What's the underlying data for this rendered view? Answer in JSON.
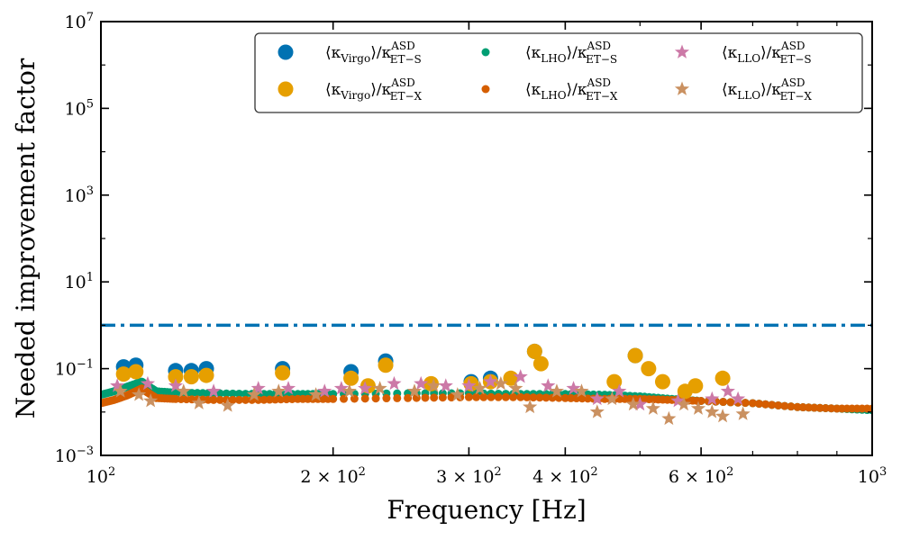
{
  "chart_data": {
    "type": "scatter",
    "title": "",
    "xlabel": "Frequency [Hz]",
    "ylabel": "Needed improvement factor",
    "xscale": "log",
    "yscale": "log",
    "xlim": [
      100,
      1000
    ],
    "ylim": [
      0.001,
      10000000
    ],
    "x_ticks": [
      {
        "value": 100,
        "label": "10",
        "sup": "2"
      },
      {
        "value": 200,
        "label": "2 × 10",
        "sup": "2"
      },
      {
        "value": 300,
        "label": "3 × 10",
        "sup": "2"
      },
      {
        "value": 400,
        "label": "4 × 10",
        "sup": "2"
      },
      {
        "value": 600,
        "label": "6 × 10",
        "sup": "2"
      },
      {
        "value": 1000,
        "label": "10",
        "sup": "3"
      }
    ],
    "y_ticks": [
      {
        "value": 0.001,
        "label": "10",
        "sup": "−3"
      },
      {
        "value": 0.1,
        "label": "10",
        "sup": "−1"
      },
      {
        "value": 10,
        "label": "10",
        "sup": "1"
      },
      {
        "value": 1000,
        "label": "10",
        "sup": "3"
      },
      {
        "value": 100000,
        "label": "10",
        "sup": "5"
      },
      {
        "value": 10000000,
        "label": "10",
        "sup": "7"
      }
    ],
    "reference_line": {
      "y": 1,
      "color": "#0072b2",
      "style": "dash-dot"
    },
    "legend_position": "top-right",
    "series": [
      {
        "name": "⟨κVirgo⟩/κASD ET−S",
        "kappa": "Virgo",
        "det": "ET−S",
        "color": "#0072b2",
        "marker": "circle-large",
        "points": [
          [
            107,
            0.11
          ],
          [
            111,
            0.12
          ],
          [
            125,
            0.09
          ],
          [
            131,
            0.09
          ],
          [
            137,
            0.1
          ],
          [
            172,
            0.1
          ],
          [
            211,
            0.085
          ],
          [
            234,
            0.15
          ],
          [
            302,
            0.05
          ],
          [
            320,
            0.06
          ],
          [
            365,
            0.25
          ],
          [
            493,
            0.2
          ]
        ]
      },
      {
        "name": "⟨κVirgo⟩/κASD ET−X",
        "kappa": "Virgo",
        "det": "ET−X",
        "color": "#e69f00",
        "marker": "circle-large",
        "points": [
          [
            107,
            0.075
          ],
          [
            111,
            0.085
          ],
          [
            125,
            0.065
          ],
          [
            131,
            0.065
          ],
          [
            137,
            0.07
          ],
          [
            172,
            0.08
          ],
          [
            211,
            0.06
          ],
          [
            222,
            0.04
          ],
          [
            234,
            0.12
          ],
          [
            268,
            0.045
          ],
          [
            302,
            0.045
          ],
          [
            320,
            0.05
          ],
          [
            340,
            0.06
          ],
          [
            365,
            0.25
          ],
          [
            372,
            0.13
          ],
          [
            463,
            0.05
          ],
          [
            493,
            0.2
          ],
          [
            513,
            0.1
          ],
          [
            535,
            0.05
          ],
          [
            572,
            0.03
          ],
          [
            590,
            0.04
          ],
          [
            640,
            0.06
          ]
        ]
      },
      {
        "name": "⟨κLHO⟩/κASD ET−S",
        "kappa": "LHO",
        "det": "ET−S",
        "color": "#009e73",
        "marker": "dot",
        "curve": true,
        "points": [
          [
            100,
            0.025
          ],
          [
            104,
            0.03
          ],
          [
            108,
            0.038
          ],
          [
            111,
            0.045
          ],
          [
            113,
            0.05
          ],
          [
            115,
            0.04
          ],
          [
            118,
            0.03
          ],
          [
            125,
            0.028
          ],
          [
            140,
            0.027
          ],
          [
            160,
            0.026
          ],
          [
            180,
            0.026
          ],
          [
            200,
            0.026
          ],
          [
            250,
            0.027
          ],
          [
            300,
            0.027
          ],
          [
            350,
            0.026
          ],
          [
            400,
            0.026
          ],
          [
            450,
            0.025
          ],
          [
            500,
            0.023
          ],
          [
            550,
            0.02
          ],
          [
            600,
            0.018
          ],
          [
            700,
            0.016
          ],
          [
            800,
            0.013
          ],
          [
            900,
            0.012
          ],
          [
            1000,
            0.011
          ]
        ]
      },
      {
        "name": "⟨κLHO⟩/κASD ET−X",
        "kappa": "LHO",
        "det": "ET−X",
        "color": "#d55e00",
        "marker": "dot",
        "curve": true,
        "points": [
          [
            100,
            0.016
          ],
          [
            104,
            0.019
          ],
          [
            108,
            0.024
          ],
          [
            111,
            0.03
          ],
          [
            113,
            0.035
          ],
          [
            115,
            0.028
          ],
          [
            118,
            0.021
          ],
          [
            125,
            0.02
          ],
          [
            140,
            0.019
          ],
          [
            160,
            0.019
          ],
          [
            180,
            0.02
          ],
          [
            200,
            0.02
          ],
          [
            250,
            0.021
          ],
          [
            300,
            0.022
          ],
          [
            350,
            0.022
          ],
          [
            400,
            0.021
          ],
          [
            450,
            0.02
          ],
          [
            500,
            0.02
          ],
          [
            550,
            0.019
          ],
          [
            600,
            0.018
          ],
          [
            700,
            0.016
          ],
          [
            800,
            0.013
          ],
          [
            900,
            0.012
          ],
          [
            1000,
            0.012
          ]
        ]
      },
      {
        "name": "⟨κLLO⟩/κASD ET−S",
        "kappa": "LLO",
        "det": "ET−S",
        "color": "#cc79a7",
        "marker": "star",
        "points": [
          [
            105,
            0.04
          ],
          [
            115,
            0.045
          ],
          [
            125,
            0.04
          ],
          [
            140,
            0.03
          ],
          [
            160,
            0.035
          ],
          [
            175,
            0.035
          ],
          [
            195,
            0.03
          ],
          [
            205,
            0.035
          ],
          [
            220,
            0.035
          ],
          [
            240,
            0.045
          ],
          [
            260,
            0.045
          ],
          [
            280,
            0.04
          ],
          [
            300,
            0.04
          ],
          [
            320,
            0.05
          ],
          [
            350,
            0.065
          ],
          [
            380,
            0.04
          ],
          [
            410,
            0.035
          ],
          [
            440,
            0.02
          ],
          [
            470,
            0.03
          ],
          [
            500,
            0.015
          ],
          [
            560,
            0.018
          ],
          [
            620,
            0.02
          ],
          [
            650,
            0.03
          ],
          [
            670,
            0.02
          ]
        ]
      },
      {
        "name": "⟨κLLO⟩/κASD ET−X",
        "kappa": "LLO",
        "det": "ET−X",
        "color": "#ca9161",
        "marker": "star",
        "points": [
          [
            106,
            0.03
          ],
          [
            112,
            0.025
          ],
          [
            116,
            0.018
          ],
          [
            128,
            0.03
          ],
          [
            134,
            0.016
          ],
          [
            146,
            0.014
          ],
          [
            158,
            0.025
          ],
          [
            170,
            0.03
          ],
          [
            190,
            0.025
          ],
          [
            210,
            0.03
          ],
          [
            230,
            0.035
          ],
          [
            255,
            0.03
          ],
          [
            270,
            0.04
          ],
          [
            290,
            0.025
          ],
          [
            310,
            0.035
          ],
          [
            330,
            0.045
          ],
          [
            345,
            0.035
          ],
          [
            360,
            0.013
          ],
          [
            390,
            0.03
          ],
          [
            420,
            0.03
          ],
          [
            440,
            0.01
          ],
          [
            460,
            0.02
          ],
          [
            490,
            0.015
          ],
          [
            520,
            0.012
          ],
          [
            545,
            0.007
          ],
          [
            570,
            0.015
          ],
          [
            595,
            0.012
          ],
          [
            620,
            0.01
          ],
          [
            640,
            0.008
          ],
          [
            680,
            0.009
          ]
        ]
      }
    ]
  }
}
